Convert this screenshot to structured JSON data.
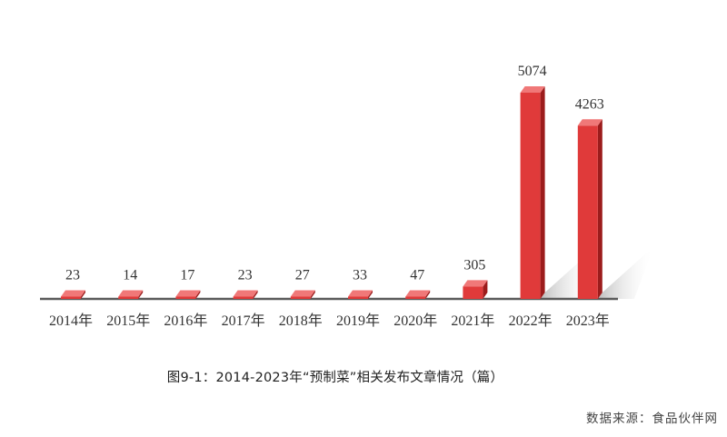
{
  "chart_data": {
    "type": "bar",
    "title": "图9-1：2014-2023年“预制菜”相关发布文章情况（篇）",
    "categories": [
      "2014年",
      "2015年",
      "2016年",
      "2017年",
      "2018年",
      "2019年",
      "2020年",
      "2021年",
      "2022年",
      "2023年"
    ],
    "values": [
      23,
      14,
      17,
      23,
      27,
      33,
      47,
      305,
      5074,
      4263
    ],
    "value_labels": [
      "23",
      "14",
      "17",
      "23",
      "27",
      "33",
      "47",
      "305",
      "5074",
      "4263"
    ],
    "xlabel": "",
    "ylabel": "",
    "ylim": [
      0,
      5074
    ],
    "grid": false,
    "colors": {
      "bar_front": "#e03a3a",
      "bar_side": "#9c1c1c",
      "bar_top": "#f07878",
      "axis": "#5a5a5a"
    }
  },
  "caption": "图9-1：2014-2023年“预制菜”相关发布文章情况（篇）",
  "source": "数据来源：食品伙伴网"
}
